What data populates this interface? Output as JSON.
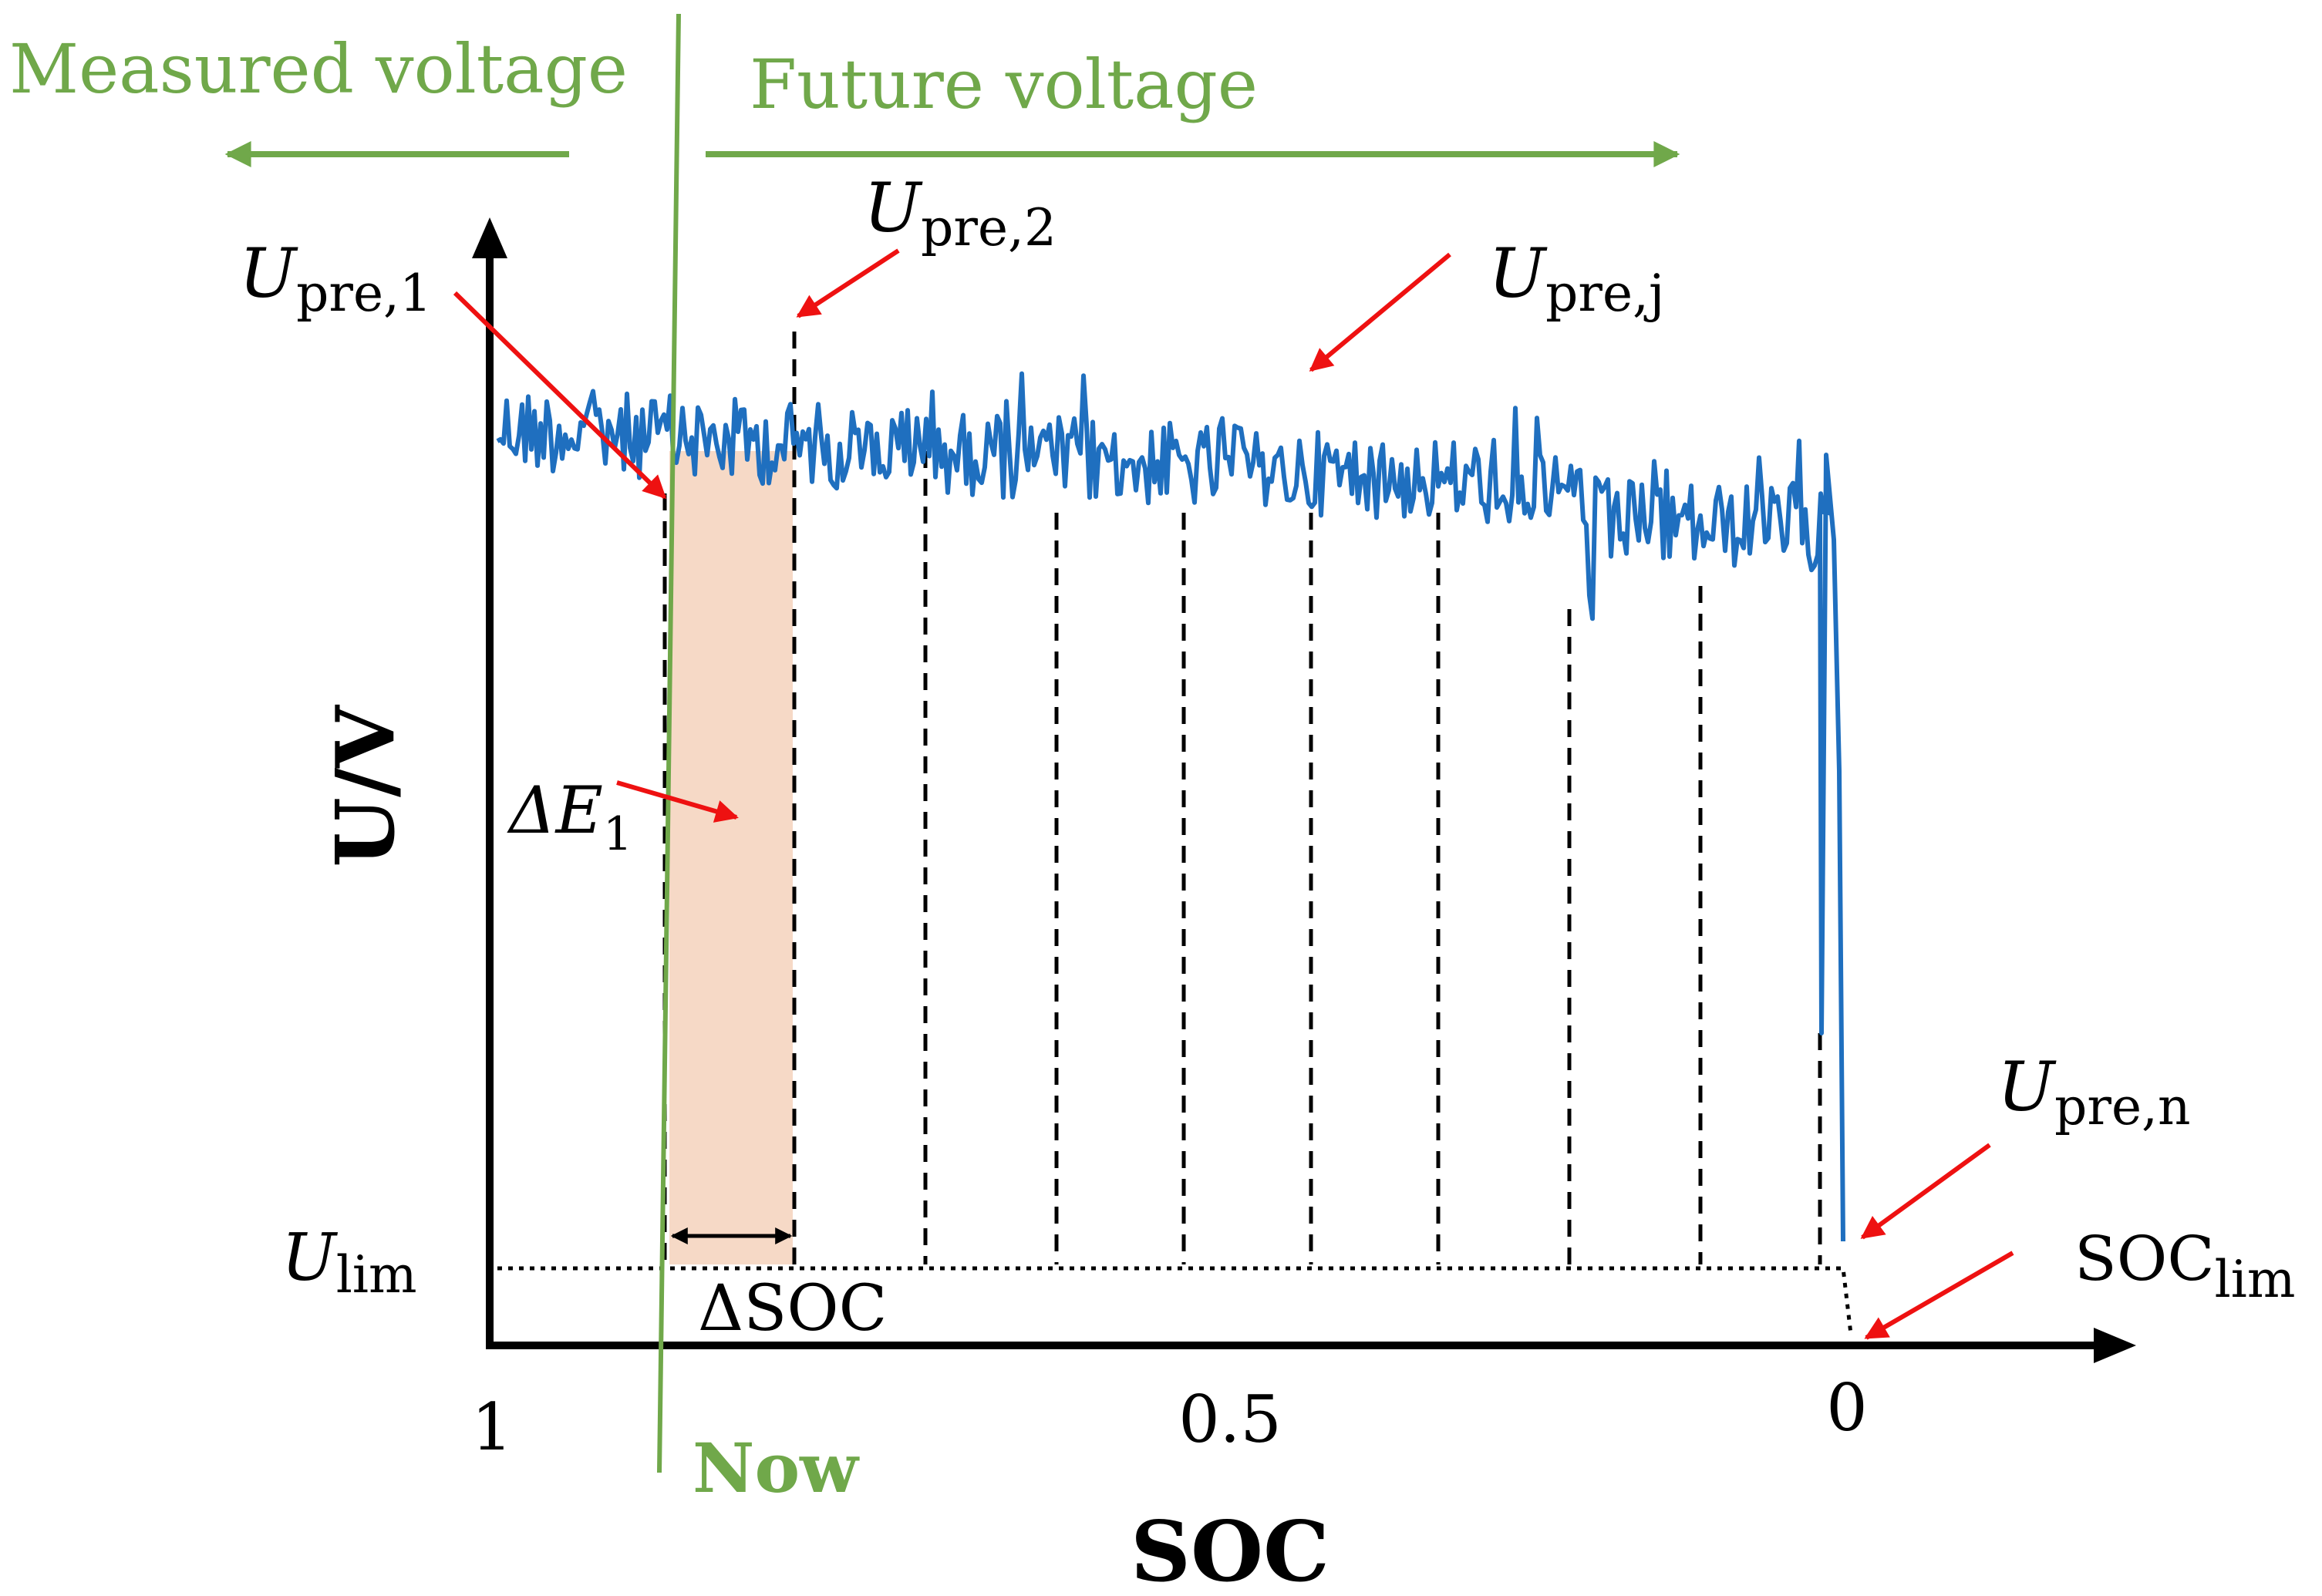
{
  "labels": {
    "measured": "Measured voltage",
    "future": "Future voltage",
    "now": "Now",
    "y_axis": "U/V",
    "x_axis": "SOC",
    "tick_1": "1",
    "tick_05": "0.5",
    "tick_0": "0",
    "delta_soc": "ΔSOC",
    "delta_e": "ΔE",
    "delta_e_sub": "1",
    "u_lim_main": "U",
    "u_lim_sub": "lim",
    "soc_lim_main": "SOC",
    "soc_lim_sub": "lim",
    "u_pre1_main": "U",
    "u_pre1_sub": "pre,1",
    "u_pre2_main": "U",
    "u_pre2_sub": "pre,2",
    "u_prej_main": "U",
    "u_prej_sub": "pre,j",
    "u_pren_main": "U",
    "u_pren_sub": "pre,n"
  },
  "colors": {
    "accent_green": "#70a84a",
    "curve_blue": "#1f6fbf",
    "arrow_red": "#ee1111",
    "shade": "#f6d9c6"
  }
}
